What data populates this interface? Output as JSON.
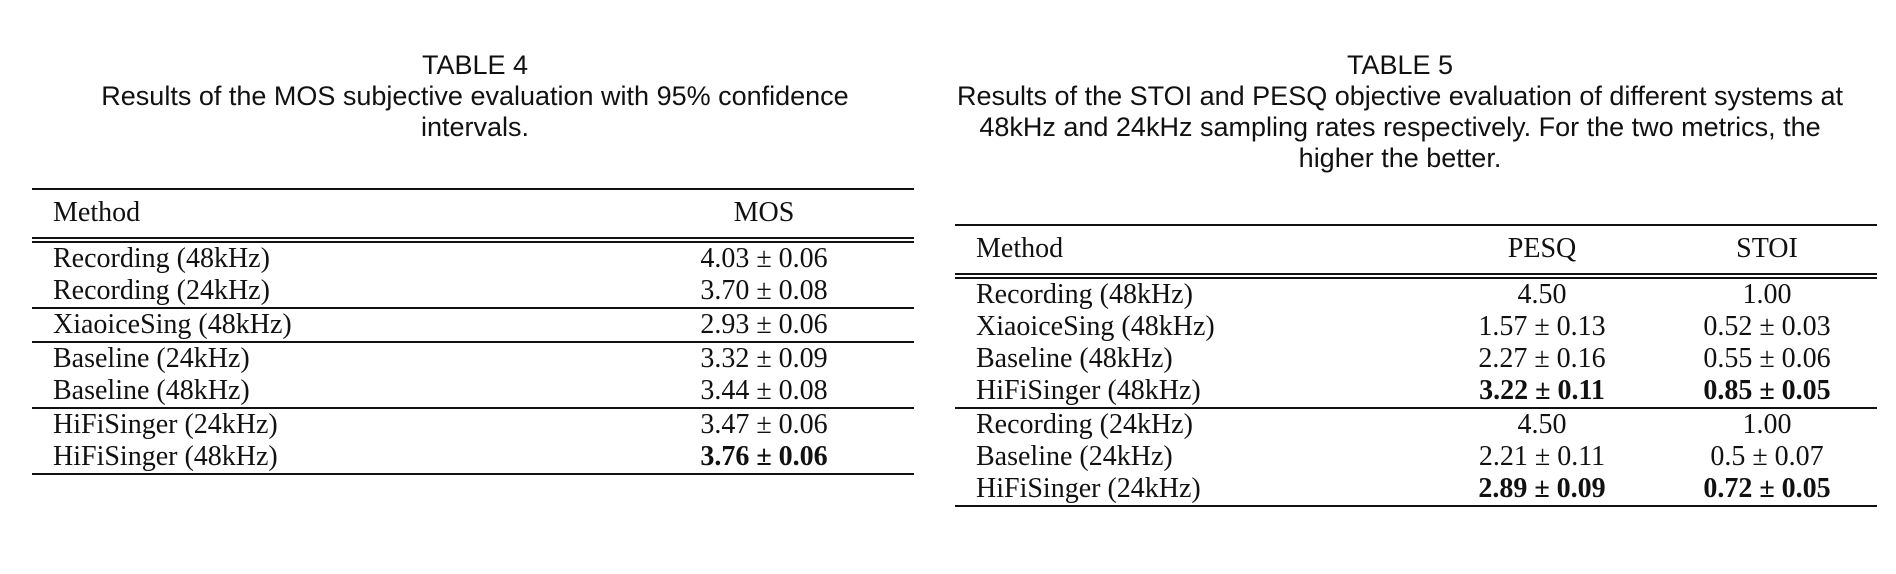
{
  "table4": {
    "label": "TABLE 4",
    "caption": "Results of the MOS subjective evaluation with 95% confidence intervals.",
    "headers": [
      "Method",
      "MOS"
    ],
    "groups": [
      [
        [
          "Recording (48kHz)",
          "4.03 ± 0.06"
        ],
        [
          "Recording (24kHz)",
          "3.70 ± 0.08"
        ]
      ],
      [
        [
          "XiaoiceSing (48kHz)",
          "2.93 ± 0.06"
        ]
      ],
      [
        [
          "Baseline (24kHz)",
          "3.32 ± 0.09"
        ],
        [
          "Baseline (48kHz)",
          "3.44 ± 0.08"
        ]
      ],
      [
        [
          "HiFiSinger (24kHz)",
          "3.47 ± 0.06"
        ],
        [
          "HiFiSinger (48kHz)",
          "3.76 ± 0.06"
        ]
      ]
    ]
  },
  "table5": {
    "label": "TABLE 5",
    "caption": "Results of the STOI and PESQ objective evaluation of different systems at 48kHz and 24kHz sampling rates respectively. For the two metrics, the higher the better.",
    "headers": [
      "Method",
      "PESQ",
      "STOI"
    ],
    "groups": [
      [
        [
          "Recording (48kHz)",
          "4.50",
          "1.00"
        ],
        [
          "XiaoiceSing (48kHz)",
          "1.57 ± 0.13",
          "0.52 ± 0.03"
        ],
        [
          "Baseline (48kHz)",
          "2.27 ± 0.16",
          "0.55 ± 0.06"
        ],
        [
          "HiFiSinger (48kHz)",
          "3.22 ± 0.11",
          "0.85 ± 0.05"
        ]
      ],
      [
        [
          "Recording (24kHz)",
          "4.50",
          "1.00"
        ],
        [
          "Baseline (24kHz)",
          "2.21 ± 0.11",
          "0.5 ± 0.07"
        ],
        [
          "HiFiSinger (24kHz)",
          "2.89 ± 0.09",
          "0.72 ± 0.05"
        ]
      ]
    ]
  }
}
